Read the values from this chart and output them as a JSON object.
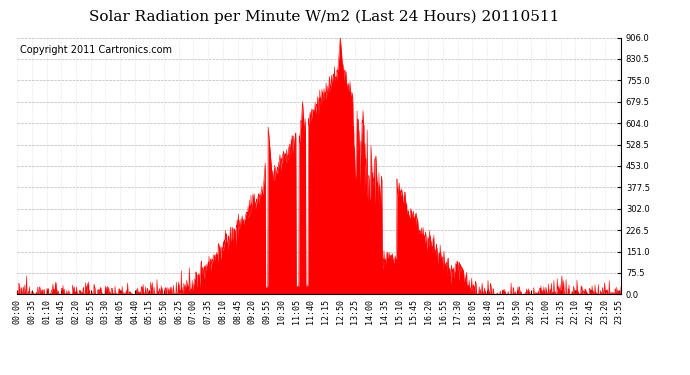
{
  "title": "Solar Radiation per Minute W/m2 (Last 24 Hours) 20110511",
  "copyright": "Copyright 2011 Cartronics.com",
  "bg_color": "#ffffff",
  "plot_bg_color": "#ffffff",
  "fill_color": "#ff0000",
  "line_color": "#ff0000",
  "grid_color": "#999999",
  "dashed_line_color": "#ff0000",
  "ylim": [
    0.0,
    906.0
  ],
  "yticks": [
    0.0,
    75.5,
    151.0,
    226.5,
    302.0,
    377.5,
    453.0,
    528.5,
    604.0,
    679.5,
    755.0,
    830.5,
    906.0
  ],
  "num_minutes": 1440,
  "title_fontsize": 11,
  "copyright_fontsize": 7,
  "tick_fontsize": 6
}
